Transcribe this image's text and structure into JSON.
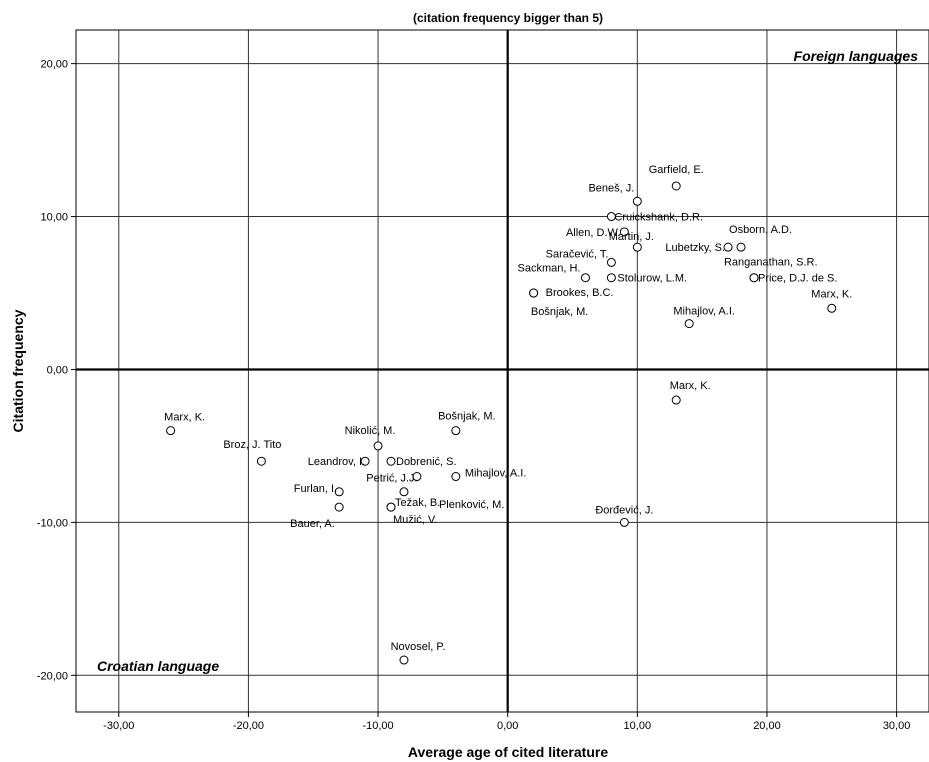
{
  "chart_data": {
    "type": "scatter",
    "title": "(citation frequency bigger than 5)",
    "xlabel": "Average age of cited literature",
    "ylabel": "Citation frequency",
    "xlim": [
      -33.3,
      32.5
    ],
    "ylim": [
      -22.4,
      22.2
    ],
    "xticks": [
      -30,
      -20,
      -10,
      0,
      10,
      20,
      30
    ],
    "yticks": [
      -20,
      -10,
      0,
      10,
      20
    ],
    "xtick_labels": [
      "-30,00",
      "-20,00",
      "-10,00",
      "0,00",
      "10,00",
      "20,00",
      "30,00"
    ],
    "ytick_labels": [
      "-20,00",
      "-10,00",
      "0,00",
      "10,00",
      "20,00"
    ],
    "grid": true,
    "quadrant_labels": {
      "top_right": "Foreign languages",
      "bottom_left": "Croatian language"
    },
    "points": [
      {
        "label": "Garfield, E.",
        "x": 13,
        "y": 12
      },
      {
        "label": "Beneš, J.",
        "x": 10,
        "y": 11
      },
      {
        "label": "Cruickshank, D.R.",
        "x": 8,
        "y": 10
      },
      {
        "label": "Allen, D.W.",
        "x": 9,
        "y": 9
      },
      {
        "label": "Martin, J.",
        "x": 10,
        "y": 8
      },
      {
        "label": "Osborn, A.D.",
        "x": 18,
        "y": 8
      },
      {
        "label": "Lubetzky, S.",
        "x": 17,
        "y": 8
      },
      {
        "label": "Saračević, T.",
        "x": 8,
        "y": 7
      },
      {
        "label": "Ranganathan, S.R.",
        "x": 19,
        "y": 6
      },
      {
        "label": "Price, D.J. de S.",
        "x": 19,
        "y": 6
      },
      {
        "label": "Sackman, H.",
        "x": 6,
        "y": 6
      },
      {
        "label": "Stolurow, L.M.",
        "x": 8,
        "y": 6
      },
      {
        "label": "Brookes, B.C.",
        "x": 2,
        "y": 5
      },
      {
        "label": "Bošnjak, M.",
        "x": 2,
        "y": 5
      },
      {
        "label": "Marx, K.",
        "x": 25,
        "y": 4
      },
      {
        "label": "Mihajlov, A.I.",
        "x": 14,
        "y": 3
      },
      {
        "label": "Marx, K.",
        "x": 13,
        "y": -2
      },
      {
        "label": "Marx, K.",
        "x": -26,
        "y": -4
      },
      {
        "label": "Bošnjak, M.",
        "x": -4,
        "y": -4
      },
      {
        "label": "Nikolić, M.",
        "x": -10,
        "y": -5
      },
      {
        "label": "Broz, J. Tito",
        "x": -19,
        "y": -6
      },
      {
        "label": "Leandrov, I.",
        "x": -11,
        "y": -6
      },
      {
        "label": "Dobrenić, S.",
        "x": -9,
        "y": -6
      },
      {
        "label": "Petrić, J.J.",
        "x": -7,
        "y": -7
      },
      {
        "label": "Mihajlov, A.I.",
        "x": -4,
        "y": -7
      },
      {
        "label": "Plenković, M.",
        "x": -8,
        "y": -8
      },
      {
        "label": "Furlan, I.",
        "x": -13,
        "y": -8
      },
      {
        "label": "Težak, B.",
        "x": -9,
        "y": -9
      },
      {
        "label": "Bauer, A.",
        "x": -13,
        "y": -9
      },
      {
        "label": "Mužić, V.",
        "x": -9,
        "y": -9
      },
      {
        "label": "Đorđević, J.",
        "x": 9,
        "y": -10
      },
      {
        "label": "Novosel, P.",
        "x": -8,
        "y": -19
      }
    ]
  }
}
